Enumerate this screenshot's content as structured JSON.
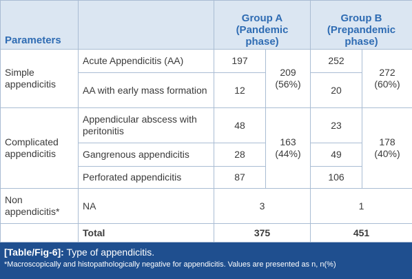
{
  "header": {
    "parameters": "Parameters",
    "group_a": {
      "name": "Group A",
      "phase": "(Pandemic phase)"
    },
    "group_b": {
      "name": "Group B",
      "phase": "(Prepandemic phase)"
    }
  },
  "rows": [
    {
      "group": "Simple appendicitis",
      "items": [
        {
          "label": "Acute Appendicitis (AA)",
          "a": "197",
          "b": "252"
        },
        {
          "label": "AA with early mass formation",
          "a": "12",
          "b": "20"
        }
      ],
      "subtotal_a": "209 (56%)",
      "subtotal_b": "272 (60%)"
    },
    {
      "group": "Complicated appendicitis",
      "items": [
        {
          "label": "Appendicular abscess with peritonitis",
          "a": "48",
          "b": "23"
        },
        {
          "label": "Gangrenous appendicitis",
          "a": "28",
          "b": "49"
        },
        {
          "label": "Perforated appendicitis",
          "a": "87",
          "b": "106"
        }
      ],
      "subtotal_a": "163 (44%)",
      "subtotal_b": "178 (40%)"
    },
    {
      "group": "Non appendicitis*",
      "items": [
        {
          "label": "NA",
          "a": "3",
          "b": "1"
        }
      ]
    }
  ],
  "total": {
    "label": "Total",
    "a": "375",
    "b": "451"
  },
  "caption": {
    "tag": "[Table/Fig-6]:",
    "title": "Type of appendicitis.",
    "note": "*Macroscopically and histopathologically negative for appendicitis. Values are presented as n, n(%)"
  }
}
